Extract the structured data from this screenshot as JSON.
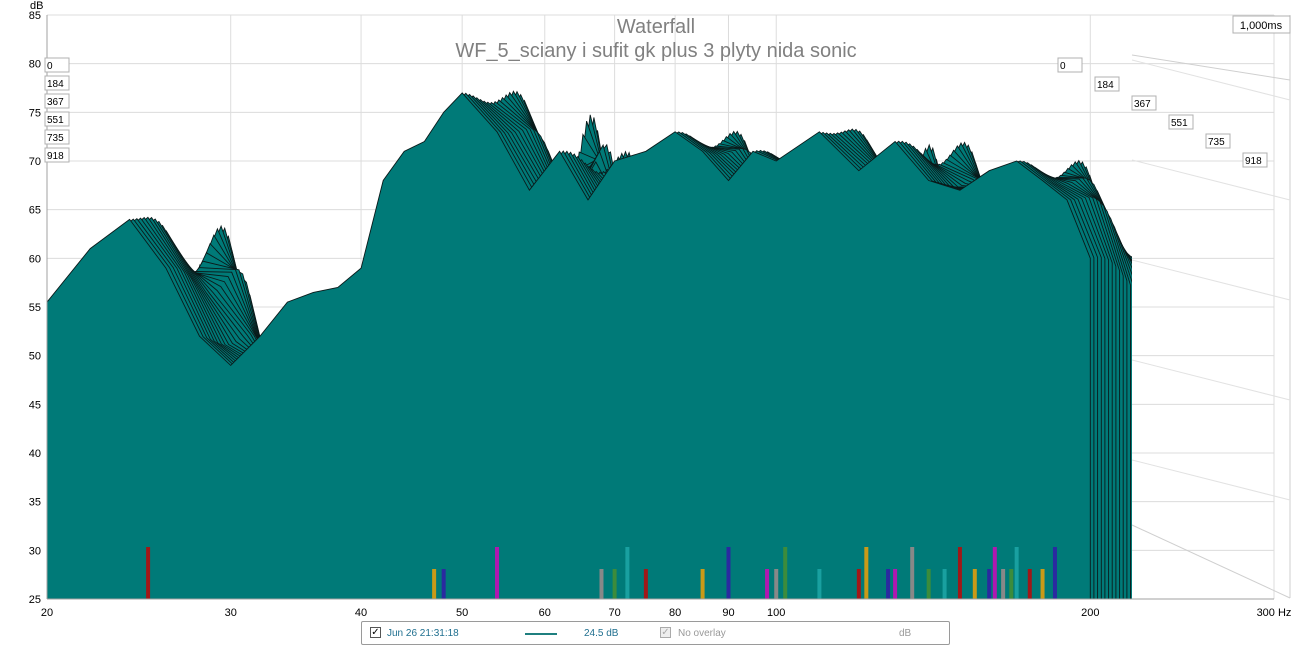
{
  "chart_data": {
    "type": "waterfall",
    "title": "Waterfall",
    "subtitle": "WF_5_sciany i sufit gk plus 3 plyty nida sonic",
    "time_window": "1,000ms",
    "ylabel": "dB",
    "ylim": [
      25,
      85
    ],
    "y_ticks": [
      "25",
      "30",
      "35",
      "40",
      "45",
      "50",
      "55",
      "60",
      "65",
      "70",
      "75",
      "80",
      "85"
    ],
    "xlim": [
      20,
      300
    ],
    "x_scale": "log",
    "x_ticks": [
      "20",
      "30",
      "40",
      "50",
      "60",
      "70",
      "80",
      "90",
      "100",
      "200",
      "300 Hz"
    ],
    "time_slices": [
      "0",
      "184",
      "367",
      "551",
      "735",
      "918"
    ],
    "fill_color": "#007a78",
    "front_slice_freq": [
      20,
      22,
      24,
      26,
      28,
      30,
      32,
      34,
      36,
      38,
      40,
      42,
      44,
      46,
      48,
      50,
      54,
      58,
      62,
      66,
      70,
      75,
      80,
      85,
      90,
      95,
      100,
      110,
      120,
      130,
      140,
      150,
      160,
      170,
      180,
      190,
      200
    ],
    "front_slice_db": [
      55.5,
      61,
      64,
      59,
      52,
      49,
      52,
      55.5,
      56.5,
      57,
      59,
      68,
      71,
      72,
      75,
      77,
      73,
      67,
      71,
      66,
      70,
      71,
      73,
      71,
      68,
      71,
      70,
      73,
      69,
      72,
      68,
      67,
      69,
      70,
      68,
      66,
      60
    ],
    "resonance_markers_hz": [
      25,
      47,
      48,
      54,
      68,
      70,
      72,
      75,
      85,
      90,
      98,
      100,
      102,
      110,
      120,
      122,
      128,
      130,
      135,
      140,
      145,
      150,
      155,
      160,
      162,
      165,
      168,
      170,
      175,
      180,
      185
    ]
  },
  "legend": {
    "measurement_label": "Jun 26 21:31:18",
    "level": "24.5 dB",
    "overlay_label": "No overlay",
    "overlay_unit": "dB",
    "check_mark": "✓"
  }
}
